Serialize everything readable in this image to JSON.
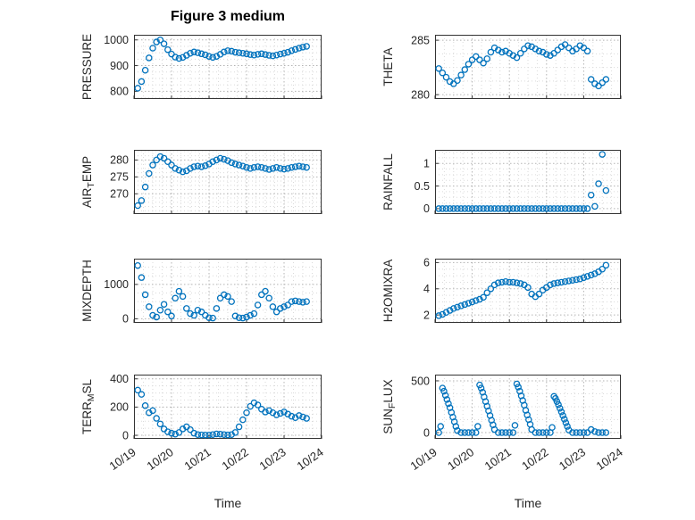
{
  "chart_data": {
    "type": "scatter",
    "title": "Figure 3 medium",
    "xlabel": "Time",
    "marker_color": "#0072BD",
    "grid": "major-and-minor-dotted",
    "xlim": [
      0,
      5
    ],
    "x_tick_values": [
      0,
      1,
      2,
      3,
      4,
      5
    ],
    "x_tick_labels": [
      "10/19",
      "10/20",
      "10/21",
      "10/22",
      "10/23",
      "10/24"
    ],
    "x": [
      0.1,
      0.2,
      0.3,
      0.4,
      0.5,
      0.6,
      0.7,
      0.8,
      0.9,
      1.0,
      1.1,
      1.2,
      1.3,
      1.4,
      1.5,
      1.6,
      1.7,
      1.8,
      1.9,
      2.0,
      2.1,
      2.2,
      2.3,
      2.4,
      2.5,
      2.6,
      2.7,
      2.8,
      2.9,
      3.0,
      3.1,
      3.2,
      3.3,
      3.4,
      3.5,
      3.6,
      3.7,
      3.8,
      3.9,
      4.0,
      4.1,
      4.2,
      4.3,
      4.4,
      4.5,
      4.6
    ],
    "subplots": [
      {
        "ylabel": "PRESSURE",
        "yticks": [
          800,
          900,
          1000
        ],
        "ylim": [
          770,
          1020
        ],
        "values": [
          812,
          838,
          882,
          930,
          968,
          992,
          1000,
          985,
          962,
          945,
          933,
          928,
          932,
          940,
          948,
          953,
          950,
          946,
          942,
          936,
          932,
          936,
          944,
          953,
          958,
          956,
          952,
          950,
          948,
          946,
          943,
          941,
          944,
          946,
          943,
          940,
          938,
          941,
          945,
          948,
          952,
          958,
          963,
          968,
          972,
          975
        ]
      },
      {
        "ylabel": "THETA",
        "yticks": [
          280,
          285
        ],
        "ylim": [
          279.6,
          285.5
        ],
        "values": [
          282.4,
          282.0,
          281.6,
          281.2,
          281.0,
          281.3,
          281.8,
          282.3,
          282.8,
          283.2,
          283.5,
          283.2,
          282.9,
          283.3,
          283.9,
          284.3,
          284.1,
          283.9,
          284.0,
          283.8,
          283.6,
          283.4,
          283.8,
          284.2,
          284.5,
          284.4,
          284.2,
          284.0,
          283.9,
          283.7,
          283.6,
          283.8,
          284.1,
          284.4,
          284.6,
          284.3,
          284.0,
          284.2,
          284.5,
          284.3,
          284.0,
          281.4,
          281.0,
          280.8,
          281.1,
          281.4
        ]
      },
      {
        "ylabel": "AIR_TEMP",
        "yticks": [
          270,
          275,
          280
        ],
        "ylim": [
          264,
          283
        ],
        "values": [
          266.5,
          268,
          272,
          276,
          278.5,
          280,
          281,
          280.5,
          279.5,
          278.5,
          277.5,
          277,
          276.5,
          276.8,
          277.5,
          278,
          278.2,
          278,
          278.3,
          278.8,
          279.5,
          280,
          280.5,
          280.2,
          279.8,
          279.2,
          278.8,
          278.5,
          278.2,
          277.8,
          277.5,
          277.8,
          278,
          277.8,
          277.5,
          277.2,
          277.5,
          277.8,
          277.5,
          277.3,
          277.5,
          277.8,
          278,
          278.2,
          278,
          277.8
        ]
      },
      {
        "ylabel": "RAINFALL",
        "yticks": [
          0,
          0.5,
          1
        ],
        "ylim": [
          -0.12,
          1.3
        ],
        "values": [
          0,
          0,
          0,
          0,
          0,
          0,
          0,
          0,
          0,
          0,
          0,
          0,
          0,
          0,
          0,
          0,
          0,
          0,
          0,
          0,
          0,
          0,
          0,
          0,
          0,
          0,
          0,
          0,
          0,
          0,
          0,
          0,
          0,
          0,
          0,
          0,
          0,
          0,
          0,
          0,
          0,
          0.3,
          0.05,
          0.55,
          1.2,
          0.4
        ]
      },
      {
        "ylabel": "MIXDEPTH",
        "yticks": [
          0,
          1000
        ],
        "ylim": [
          -120,
          1750
        ],
        "values": [
          1550,
          1200,
          700,
          350,
          100,
          50,
          250,
          420,
          200,
          80,
          600,
          800,
          650,
          300,
          150,
          100,
          250,
          200,
          100,
          30,
          20,
          300,
          600,
          700,
          650,
          500,
          80,
          30,
          20,
          50,
          100,
          150,
          400,
          700,
          800,
          600,
          350,
          200,
          300,
          350,
          400,
          500,
          520,
          500,
          480,
          500
        ]
      },
      {
        "ylabel": "H2OMIXRA",
        "yticks": [
          2,
          4,
          6
        ],
        "ylim": [
          1.4,
          6.3
        ],
        "values": [
          1.95,
          2.05,
          2.2,
          2.35,
          2.5,
          2.6,
          2.7,
          2.8,
          2.9,
          3.0,
          3.1,
          3.2,
          3.35,
          3.7,
          4.0,
          4.3,
          4.45,
          4.5,
          4.55,
          4.5,
          4.5,
          4.45,
          4.4,
          4.3,
          4.1,
          3.6,
          3.4,
          3.6,
          3.9,
          4.1,
          4.3,
          4.4,
          4.45,
          4.5,
          4.55,
          4.6,
          4.65,
          4.7,
          4.75,
          4.85,
          4.95,
          5.05,
          5.15,
          5.3,
          5.5,
          5.8
        ]
      },
      {
        "ylabel": "TERR_MSL",
        "yticks": [
          0,
          200,
          400
        ],
        "ylim": [
          -25,
          430
        ],
        "values": [
          320,
          290,
          210,
          160,
          175,
          120,
          80,
          45,
          25,
          15,
          8,
          20,
          45,
          60,
          40,
          15,
          5,
          3,
          2,
          2,
          5,
          10,
          8,
          5,
          3,
          5,
          20,
          60,
          110,
          160,
          205,
          230,
          215,
          185,
          165,
          175,
          160,
          145,
          155,
          165,
          150,
          135,
          125,
          140,
          130,
          120
        ]
      },
      {
        "ylabel": "SUN_FLUX",
        "yticks": [
          0,
          500
        ],
        "ylim": [
          -60,
          560
        ],
        "x": [
          0.1,
          0.15,
          0.2,
          0.24,
          0.28,
          0.32,
          0.36,
          0.4,
          0.44,
          0.48,
          0.52,
          0.56,
          0.6,
          0.7,
          0.8,
          0.9,
          1.0,
          1.1,
          1.15,
          1.2,
          1.24,
          1.28,
          1.32,
          1.36,
          1.4,
          1.44,
          1.48,
          1.52,
          1.56,
          1.6,
          1.7,
          1.8,
          1.9,
          2.0,
          2.1,
          2.15,
          2.2,
          2.24,
          2.28,
          2.32,
          2.36,
          2.4,
          2.44,
          2.48,
          2.52,
          2.56,
          2.6,
          2.7,
          2.8,
          2.9,
          3.0,
          3.1,
          3.15,
          3.2,
          3.24,
          3.28,
          3.32,
          3.36,
          3.4,
          3.44,
          3.48,
          3.52,
          3.56,
          3.6,
          3.7,
          3.8,
          3.9,
          4.0,
          4.1,
          4.2,
          4.3,
          4.4,
          4.5,
          4.6
        ],
        "values": [
          0,
          60,
          430,
          400,
          360,
          320,
          280,
          240,
          195,
          150,
          105,
          60,
          20,
          0,
          0,
          0,
          0,
          0,
          60,
          460,
          430,
          390,
          345,
          300,
          255,
          210,
          165,
          120,
          75,
          30,
          0,
          0,
          0,
          0,
          0,
          70,
          470,
          440,
          400,
          355,
          310,
          265,
          215,
          170,
          125,
          80,
          30,
          0,
          0,
          0,
          0,
          0,
          50,
          350,
          330,
          300,
          270,
          235,
          200,
          165,
          130,
          95,
          60,
          25,
          0,
          0,
          0,
          0,
          0,
          30,
          10,
          0,
          0,
          0
        ]
      }
    ]
  }
}
